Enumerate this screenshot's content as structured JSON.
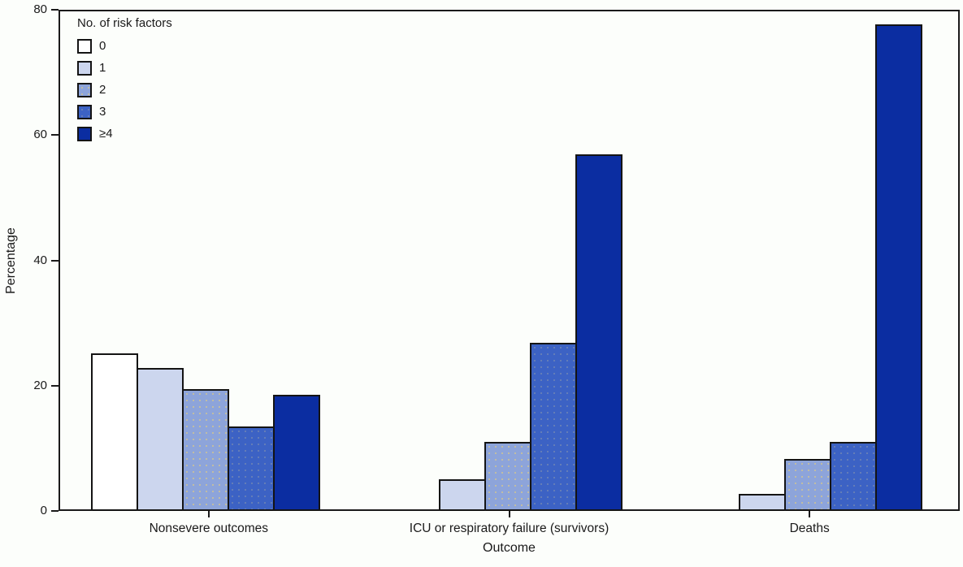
{
  "style": {
    "background": "#fcfefb",
    "axis_color": "#1a1a1a",
    "bar_border_color": "#141414"
  },
  "chart_data": {
    "type": "bar",
    "legend_title": "No. of risk factors",
    "xlabel": "Outcome",
    "ylabel": "Percentage",
    "ylim": [
      0,
      80
    ],
    "yticks": [
      0,
      20,
      40,
      60,
      80
    ],
    "grid": false,
    "legend_position": "top-left-inside",
    "categories": [
      "Nonsevere outcomes",
      "ICU or respiratory failure (survivors)",
      "Deaths"
    ],
    "series": [
      {
        "name": "0",
        "color": "#ffffff",
        "texture": "none",
        "values": [
          25.1,
          null,
          null
        ]
      },
      {
        "name": "1",
        "color": "#ccd6ee",
        "texture": "none",
        "values": [
          22.8,
          5.1,
          2.7
        ]
      },
      {
        "name": "2",
        "color": "#8da4da",
        "texture": "dots2",
        "values": [
          19.4,
          11.0,
          8.3
        ]
      },
      {
        "name": "3",
        "color": "#3c62c4",
        "texture": "dots3",
        "values": [
          13.5,
          26.8,
          11.0
        ]
      },
      {
        "name": "≥4",
        "color": "#0b2da1",
        "texture": "none",
        "values": [
          18.6,
          56.9,
          77.7
        ]
      }
    ]
  }
}
